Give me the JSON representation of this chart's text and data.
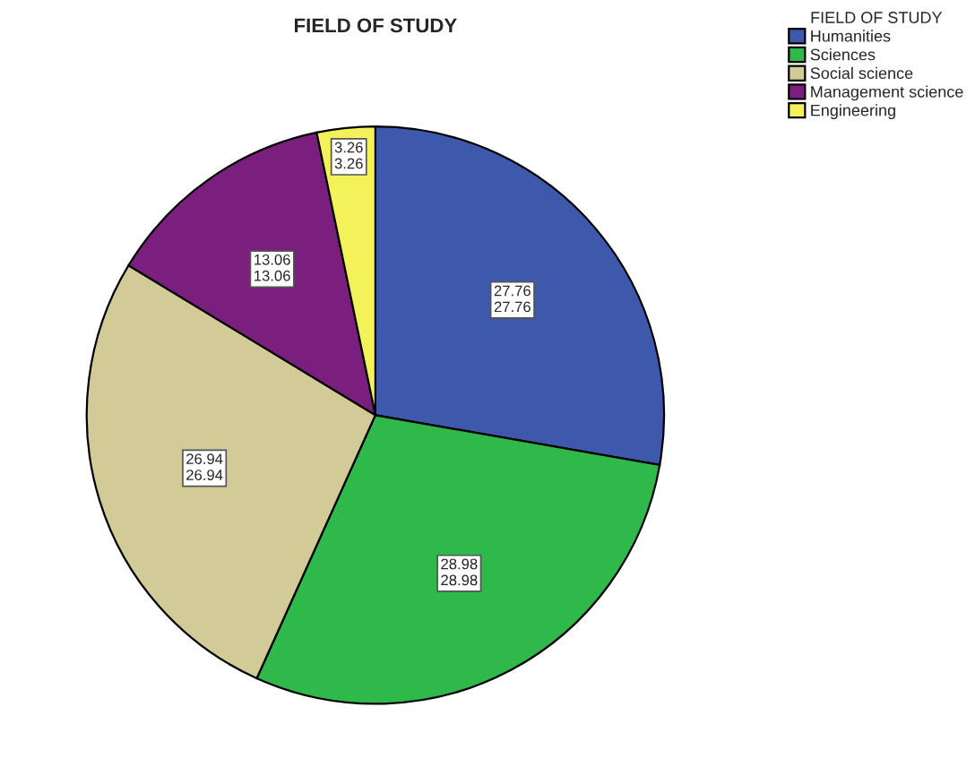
{
  "chart_data": {
    "type": "pie",
    "title": "FIELD OF STUDY",
    "legend_title": "FIELD OF STUDY",
    "legend": "top right",
    "categories": [
      "Humanities",
      "Sciences",
      "Social science",
      "Management science",
      "Engineering"
    ],
    "values": [
      27.76,
      28.98,
      26.94,
      13.06,
      3.26
    ],
    "colors": [
      "#3e58ac",
      "#2eb94a",
      "#d2cb98",
      "#7b1f7e",
      "#f4f25a"
    ],
    "value_labels": [
      "27.76\n27.76",
      "28.98\n28.98",
      "26.94\n26.94",
      "13.06\n13.06",
      "3.26\n3.26"
    ]
  }
}
